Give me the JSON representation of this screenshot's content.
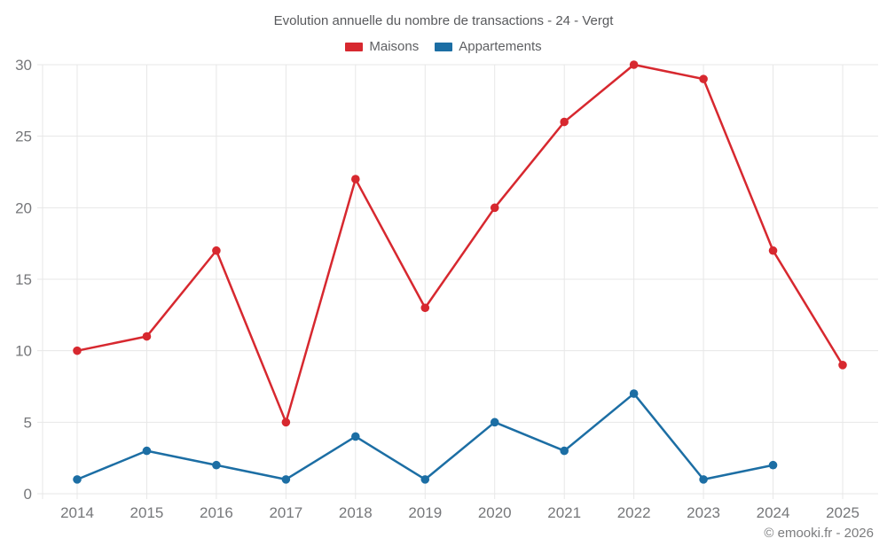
{
  "footer": {
    "copyright": "© emooki.fr - 2026"
  },
  "colors": {
    "maisons": "#d7282f",
    "appartements": "#1c6ea4",
    "grid": "#e7e7e7",
    "axis_text": "#76777a",
    "title_text": "#58595c",
    "footer_text": "#7b7c7e",
    "background": "#ffffff"
  },
  "chart_data": {
    "type": "line",
    "title": "Evolution annuelle du nombre de transactions - 24 - Vergt",
    "categories": [
      "2014",
      "2015",
      "2016",
      "2017",
      "2018",
      "2019",
      "2020",
      "2021",
      "2022",
      "2023",
      "2024",
      "2025"
    ],
    "series": [
      {
        "name": "Maisons",
        "color": "#d7282f",
        "values": [
          10,
          11,
          17,
          5,
          22,
          13,
          20,
          26,
          30,
          29,
          17,
          9
        ]
      },
      {
        "name": "Appartements",
        "color": "#1c6ea4",
        "values": [
          1,
          3,
          2,
          1,
          4,
          1,
          5,
          3,
          7,
          1,
          2,
          null
        ]
      }
    ],
    "xlabel": "",
    "ylabel": "",
    "ylim": [
      0,
      30
    ],
    "yticks": [
      0,
      5,
      10,
      15,
      20,
      25,
      30
    ],
    "grid": true,
    "legend_position": "top",
    "marker": "circle"
  }
}
